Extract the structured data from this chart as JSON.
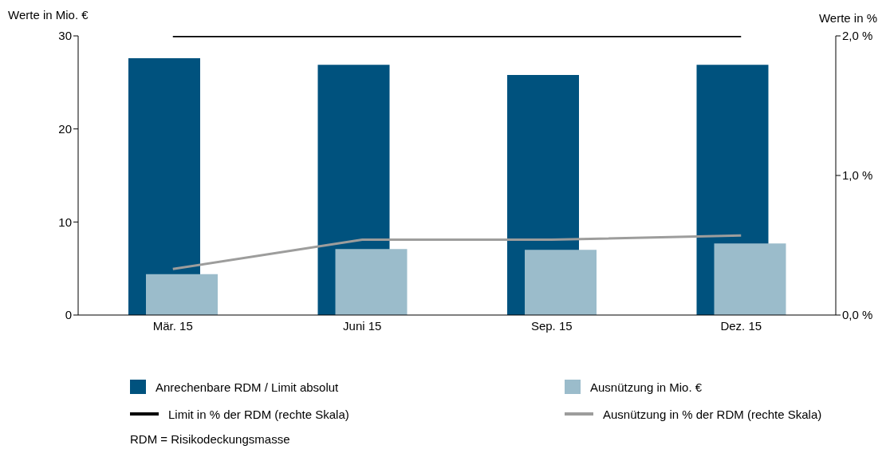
{
  "chart_data": {
    "type": "bar",
    "ylabel": "Werte in Mio. €",
    "y2label": "Werte in %",
    "categories": [
      "Mär. 15",
      "Juni 15",
      "Sep. 15",
      "Dez. 15"
    ],
    "series": [
      {
        "name": "Anrechenbare RDM / Limit absolut",
        "color": "#00527e",
        "values": [
          27.6,
          26.9,
          25.8,
          26.9
        ]
      },
      {
        "name": "Ausnützung in Mio. €",
        "color": "#9bbccb",
        "values": [
          4.4,
          7.1,
          7.0,
          7.7
        ]
      },
      {
        "name": "Limit in % der RDM (rechte Skala)",
        "type": "line",
        "axis": "y2",
        "color": "#000000",
        "values": [
          2.0,
          2.0,
          2.0,
          2.0
        ]
      },
      {
        "name": "Ausnützung in % der RDM (rechte Skala)",
        "type": "line",
        "axis": "y2",
        "color": "#9d9d9c",
        "values": [
          0.33,
          0.54,
          0.54,
          0.57
        ]
      }
    ],
    "ylim": [
      0,
      30
    ],
    "yticks": [
      0,
      10,
      20,
      30
    ],
    "y2lim": [
      0,
      2
    ],
    "y2ticks": [
      {
        "value": 0,
        "label": "0,0 %"
      },
      {
        "value": 1,
        "label": "1,0 %"
      },
      {
        "value": 2,
        "label": "2,0 %"
      }
    ],
    "legend": "bottom",
    "marker": "none",
    "annotations": [
      "RDM = Risikodeckungsmasse"
    ]
  }
}
